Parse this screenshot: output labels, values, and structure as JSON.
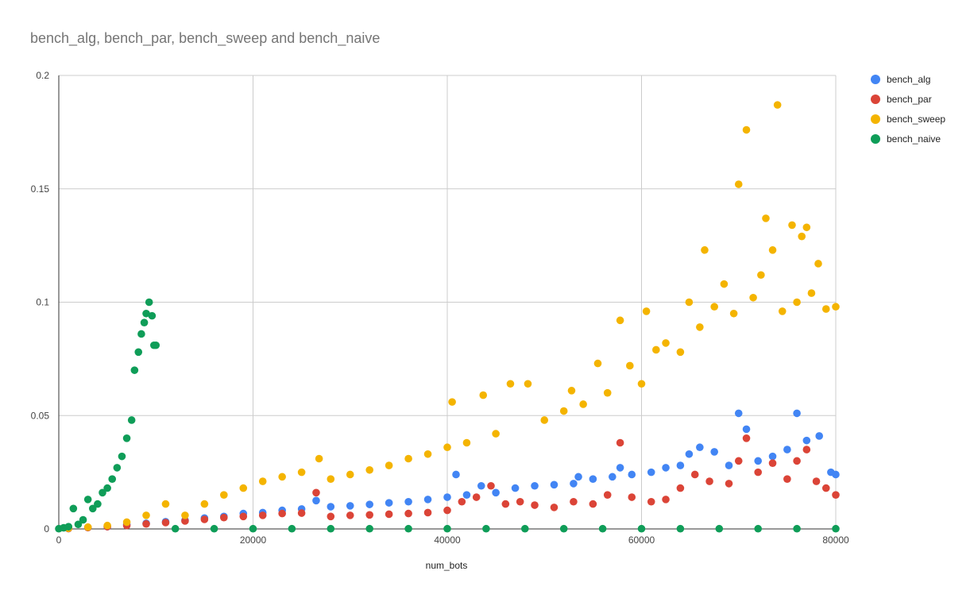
{
  "chart_data": {
    "type": "scatter",
    "title": "bench_alg, bench_par, bench_sweep and bench_naive",
    "xlabel": "num_bots",
    "ylabel": "",
    "xlim": [
      0,
      80000
    ],
    "ylim": [
      0,
      0.2
    ],
    "x_ticks": [
      "0",
      "20000",
      "40000",
      "60000",
      "80000"
    ],
    "y_ticks": [
      "0",
      "0.05",
      "0.1",
      "0.15",
      "0.2"
    ],
    "grid": true,
    "legend_position": "right",
    "series": [
      {
        "name": "bench_alg",
        "color": "#4285f4",
        "points": [
          [
            1000,
            0.0002
          ],
          [
            3000,
            0.0006
          ],
          [
            5000,
            0.001
          ],
          [
            7000,
            0.002
          ],
          [
            9000,
            0.0025
          ],
          [
            11000,
            0.0032
          ],
          [
            13000,
            0.0038
          ],
          [
            15000,
            0.0048
          ],
          [
            17000,
            0.0055
          ],
          [
            19000,
            0.0068
          ],
          [
            21000,
            0.0072
          ],
          [
            23000,
            0.0082
          ],
          [
            25000,
            0.0088
          ],
          [
            26500,
            0.0125
          ],
          [
            28000,
            0.0098
          ],
          [
            30000,
            0.0102
          ],
          [
            32000,
            0.0108
          ],
          [
            34000,
            0.0115
          ],
          [
            36000,
            0.012
          ],
          [
            38000,
            0.013
          ],
          [
            40000,
            0.014
          ],
          [
            40900,
            0.024
          ],
          [
            42000,
            0.015
          ],
          [
            43500,
            0.019
          ],
          [
            45000,
            0.016
          ],
          [
            47000,
            0.018
          ],
          [
            49000,
            0.019
          ],
          [
            51000,
            0.0195
          ],
          [
            53000,
            0.02
          ],
          [
            53500,
            0.023
          ],
          [
            55000,
            0.022
          ],
          [
            57000,
            0.023
          ],
          [
            57800,
            0.027
          ],
          [
            59000,
            0.024
          ],
          [
            61000,
            0.025
          ],
          [
            62500,
            0.027
          ],
          [
            64000,
            0.028
          ],
          [
            64900,
            0.033
          ],
          [
            66000,
            0.036
          ],
          [
            67500,
            0.034
          ],
          [
            69000,
            0.028
          ],
          [
            70000,
            0.051
          ],
          [
            70800,
            0.044
          ],
          [
            72000,
            0.03
          ],
          [
            73500,
            0.032
          ],
          [
            75000,
            0.035
          ],
          [
            76000,
            0.051
          ],
          [
            77000,
            0.039
          ],
          [
            78300,
            0.041
          ],
          [
            79500,
            0.025
          ],
          [
            80000,
            0.024
          ]
        ]
      },
      {
        "name": "bench_par",
        "color": "#db4437",
        "points": [
          [
            1000,
            0.0002
          ],
          [
            3000,
            0.0006
          ],
          [
            5000,
            0.001
          ],
          [
            7000,
            0.0015
          ],
          [
            9000,
            0.0022
          ],
          [
            11000,
            0.0028
          ],
          [
            13000,
            0.0035
          ],
          [
            15000,
            0.0042
          ],
          [
            17000,
            0.005
          ],
          [
            19000,
            0.0055
          ],
          [
            21000,
            0.006
          ],
          [
            23000,
            0.0068
          ],
          [
            25000,
            0.007
          ],
          [
            26500,
            0.016
          ],
          [
            28000,
            0.0055
          ],
          [
            30000,
            0.006
          ],
          [
            32000,
            0.0062
          ],
          [
            34000,
            0.0065
          ],
          [
            36000,
            0.0068
          ],
          [
            38000,
            0.0072
          ],
          [
            40000,
            0.0082
          ],
          [
            41500,
            0.012
          ],
          [
            43000,
            0.014
          ],
          [
            44500,
            0.019
          ],
          [
            46000,
            0.011
          ],
          [
            47500,
            0.012
          ],
          [
            49000,
            0.0105
          ],
          [
            51000,
            0.0095
          ],
          [
            53000,
            0.012
          ],
          [
            55000,
            0.011
          ],
          [
            56500,
            0.015
          ],
          [
            57800,
            0.038
          ],
          [
            59000,
            0.014
          ],
          [
            61000,
            0.012
          ],
          [
            62500,
            0.013
          ],
          [
            64000,
            0.018
          ],
          [
            65500,
            0.024
          ],
          [
            67000,
            0.021
          ],
          [
            69000,
            0.02
          ],
          [
            70000,
            0.03
          ],
          [
            70800,
            0.04
          ],
          [
            72000,
            0.025
          ],
          [
            73500,
            0.029
          ],
          [
            75000,
            0.022
          ],
          [
            76000,
            0.03
          ],
          [
            77000,
            0.035
          ],
          [
            78000,
            0.021
          ],
          [
            79000,
            0.018
          ],
          [
            80000,
            0.015
          ]
        ]
      },
      {
        "name": "bench_sweep",
        "color": "#f4b400",
        "points": [
          [
            1000,
            0.0003
          ],
          [
            3000,
            0.0008
          ],
          [
            5000,
            0.0015
          ],
          [
            7000,
            0.003
          ],
          [
            9000,
            0.006
          ],
          [
            11000,
            0.011
          ],
          [
            13000,
            0.006
          ],
          [
            15000,
            0.011
          ],
          [
            17000,
            0.015
          ],
          [
            19000,
            0.018
          ],
          [
            21000,
            0.021
          ],
          [
            23000,
            0.023
          ],
          [
            25000,
            0.025
          ],
          [
            26800,
            0.031
          ],
          [
            28000,
            0.022
          ],
          [
            30000,
            0.024
          ],
          [
            32000,
            0.026
          ],
          [
            34000,
            0.028
          ],
          [
            36000,
            0.031
          ],
          [
            38000,
            0.033
          ],
          [
            40000,
            0.036
          ],
          [
            40500,
            0.056
          ],
          [
            42000,
            0.038
          ],
          [
            43700,
            0.059
          ],
          [
            45000,
            0.042
          ],
          [
            46500,
            0.064
          ],
          [
            48300,
            0.064
          ],
          [
            50000,
            0.048
          ],
          [
            52000,
            0.052
          ],
          [
            52800,
            0.061
          ],
          [
            54000,
            0.055
          ],
          [
            55500,
            0.073
          ],
          [
            56500,
            0.06
          ],
          [
            57800,
            0.092
          ],
          [
            58800,
            0.072
          ],
          [
            60000,
            0.064
          ],
          [
            60500,
            0.096
          ],
          [
            61500,
            0.079
          ],
          [
            62500,
            0.082
          ],
          [
            64000,
            0.078
          ],
          [
            64900,
            0.1
          ],
          [
            66000,
            0.089
          ],
          [
            66500,
            0.123
          ],
          [
            67500,
            0.098
          ],
          [
            68500,
            0.108
          ],
          [
            69500,
            0.095
          ],
          [
            70000,
            0.152
          ],
          [
            70800,
            0.176
          ],
          [
            71500,
            0.102
          ],
          [
            72300,
            0.112
          ],
          [
            72800,
            0.137
          ],
          [
            73500,
            0.123
          ],
          [
            74000,
            0.187
          ],
          [
            74500,
            0.096
          ],
          [
            75500,
            0.134
          ],
          [
            76000,
            0.1
          ],
          [
            76500,
            0.129
          ],
          [
            77000,
            0.133
          ],
          [
            77500,
            0.104
          ],
          [
            78200,
            0.117
          ],
          [
            79000,
            0.097
          ],
          [
            80000,
            0.098
          ]
        ]
      },
      {
        "name": "bench_naive",
        "color": "#0f9d58",
        "points": [
          [
            0,
            0.0001
          ],
          [
            500,
            0.0005
          ],
          [
            1000,
            0.001
          ],
          [
            1500,
            0.009
          ],
          [
            2000,
            0.002
          ],
          [
            2500,
            0.004
          ],
          [
            3000,
            0.013
          ],
          [
            3500,
            0.009
          ],
          [
            4000,
            0.011
          ],
          [
            4500,
            0.016
          ],
          [
            5000,
            0.018
          ],
          [
            5500,
            0.022
          ],
          [
            6000,
            0.027
          ],
          [
            6500,
            0.032
          ],
          [
            7000,
            0.04
          ],
          [
            7500,
            0.048
          ],
          [
            7800,
            0.07
          ],
          [
            8200,
            0.078
          ],
          [
            8500,
            0.086
          ],
          [
            8800,
            0.091
          ],
          [
            9000,
            0.095
          ],
          [
            9300,
            0.1
          ],
          [
            9600,
            0.094
          ],
          [
            9800,
            0.081
          ],
          [
            10000,
            0.081
          ],
          [
            12000,
            0.0001
          ],
          [
            16000,
            0.0001
          ],
          [
            20000,
            0.0001
          ],
          [
            24000,
            0.0001
          ],
          [
            28000,
            0.0001
          ],
          [
            32000,
            0.0001
          ],
          [
            36000,
            0.0001
          ],
          [
            40000,
            0.0001
          ],
          [
            44000,
            0.0001
          ],
          [
            48000,
            0.0001
          ],
          [
            52000,
            0.0001
          ],
          [
            56000,
            0.0001
          ],
          [
            60000,
            0.0001
          ],
          [
            64000,
            0.0001
          ],
          [
            68000,
            0.0001
          ],
          [
            72000,
            0.0001
          ],
          [
            76000,
            0.0001
          ],
          [
            80000,
            0.0001
          ]
        ]
      }
    ]
  }
}
